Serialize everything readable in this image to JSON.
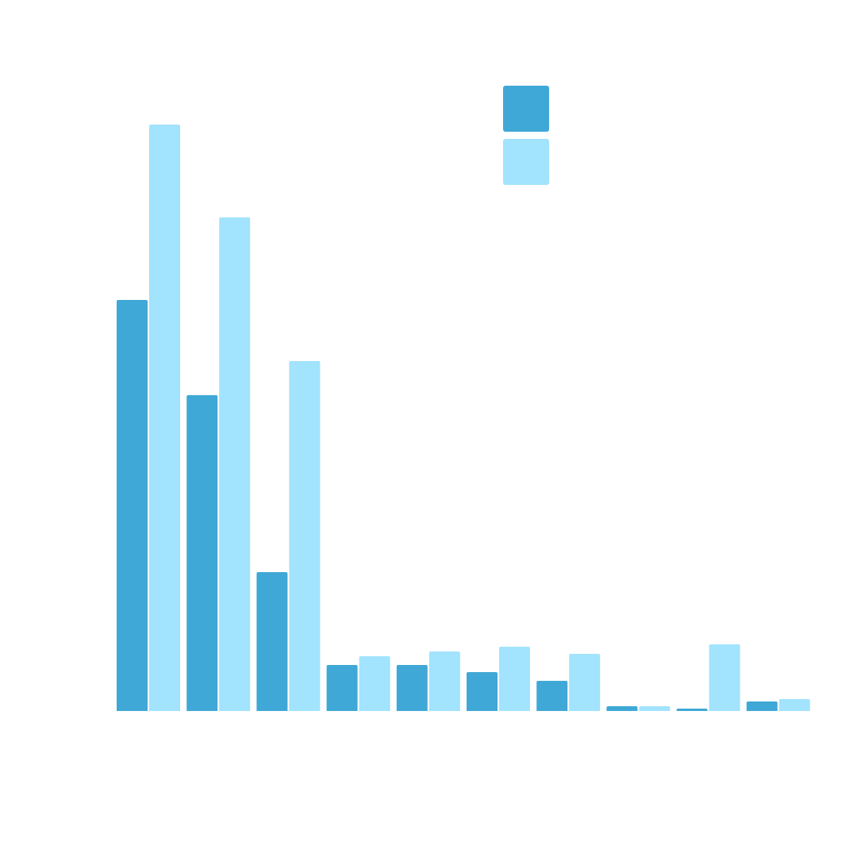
{
  "chart_data": {
    "type": "bar",
    "categories": [
      null,
      null,
      null,
      null,
      null,
      null,
      null,
      null,
      null,
      null
    ],
    "series": [
      {
        "color": "#3fa8d6",
        "values": [
          518,
          398,
          175,
          58,
          58,
          49,
          38,
          6,
          3,
          12
        ]
      },
      {
        "color": "#a2e3fd",
        "values": [
          739,
          622,
          441,
          69,
          75,
          81,
          72,
          6,
          84,
          15
        ]
      }
    ],
    "ylim": [
      0,
      800
    ]
  }
}
